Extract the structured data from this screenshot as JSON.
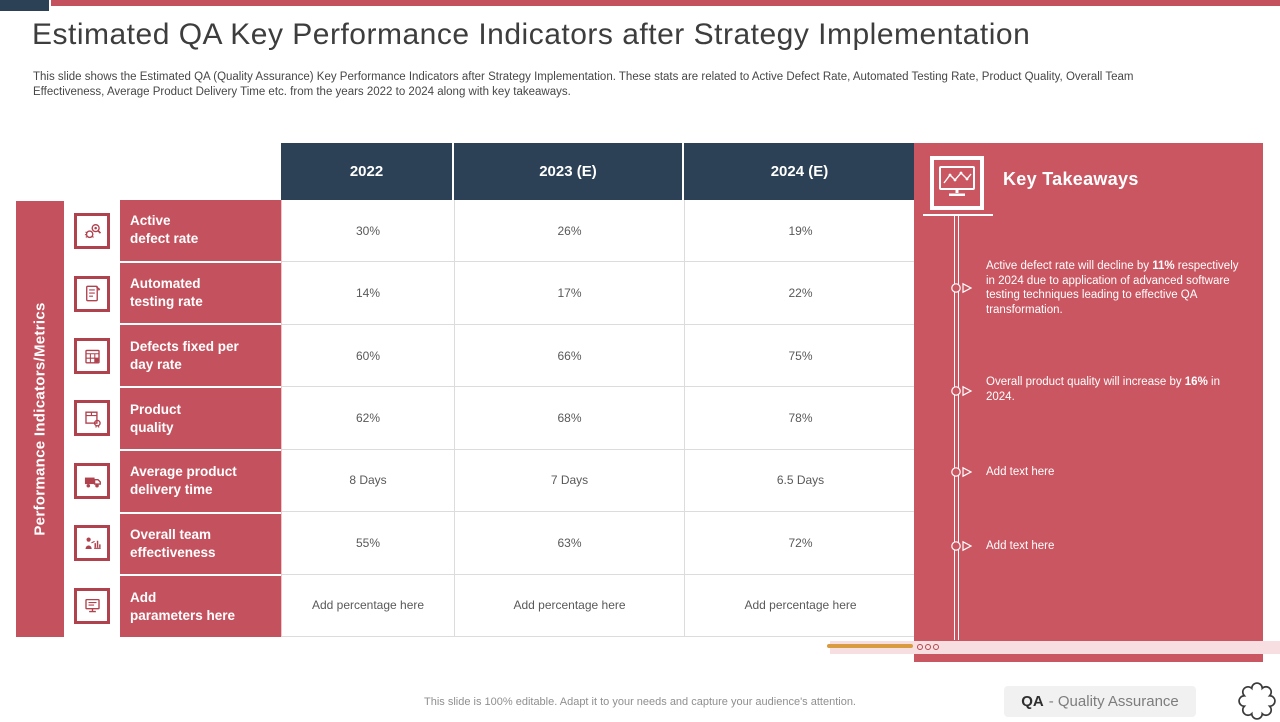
{
  "colors": {
    "navy": "#2d4156",
    "red": "#c4525e",
    "panel_red": "#ca5661",
    "orange": "#d89b3f",
    "pink": "#f7dfe1"
  },
  "header": {
    "title": "Estimated QA Key Performance Indicators after Strategy Implementation",
    "subtitle": "This slide shows the Estimated QA (Quality Assurance) Key Performance Indicators after Strategy Implementation. These stats are related to Active  Defect Rate, Automated Testing Rate, Product Quality,  Overall Team Effectiveness, Average Product Delivery Time etc. from the years 2022 to 2024 along with key takeaways."
  },
  "table": {
    "side_label": "Performance Indicators/Metrics",
    "columns": [
      "2022",
      "2023 (E)",
      "2024 (E)"
    ],
    "rows": [
      {
        "label": "Active\ndefect rate",
        "icon": "bug-search-icon",
        "values": [
          "30%",
          "26%",
          "19%"
        ],
        "placeholder": false
      },
      {
        "label": "Automated\ntesting rate",
        "icon": "checklist-icon",
        "values": [
          "14%",
          "17%",
          "22%"
        ],
        "placeholder": false
      },
      {
        "label": "Defects fixed per\nday rate",
        "icon": "calendar-bug-icon",
        "values": [
          "60%",
          "66%",
          "75%"
        ],
        "placeholder": false
      },
      {
        "label": "Product\nquality",
        "icon": "package-badge-icon",
        "values": [
          "62%",
          "68%",
          "78%"
        ],
        "placeholder": false
      },
      {
        "label": "Average product\ndelivery time",
        "icon": "truck-icon",
        "values": [
          "8 Days",
          "7 Days",
          "6.5 Days"
        ],
        "placeholder": false
      },
      {
        "label": "Overall team\neffectiveness",
        "icon": "team-chart-icon",
        "values": [
          "55%",
          "63%",
          "72%"
        ],
        "placeholder": false
      },
      {
        "label": "Add\nparameters here",
        "icon": "monitor-icon",
        "values": [
          "Add percentage here",
          "Add percentage here",
          "Add percentage here"
        ],
        "placeholder": true
      }
    ]
  },
  "takeaways": {
    "title": "Key Takeaways",
    "icon": "monitor-chart-icon",
    "items": [
      {
        "parts": [
          {
            "text": "Active  defect rate will decline by  "
          },
          {
            "text": "11%",
            "bold": true
          },
          {
            "text": " respectively in 2024 due to application of advanced software testing techniques leading to effective  QA  transformation."
          }
        ],
        "placeholder": false
      },
      {
        "parts": [
          {
            "text": "Overall product quality will increase by "
          },
          {
            "text": "16%",
            "bold": true
          },
          {
            "text": " in 2024."
          }
        ],
        "placeholder": false
      },
      {
        "parts": [
          {
            "text": "Add text here"
          }
        ],
        "placeholder": true
      },
      {
        "parts": [
          {
            "text": "Add text here"
          }
        ],
        "placeholder": true
      }
    ]
  },
  "footer": {
    "note": "This slide is 100% editable.  Adapt it to your needs and capture your audience's attention.",
    "abbr": "QA",
    "abbr_full": "- Quality Assurance"
  }
}
